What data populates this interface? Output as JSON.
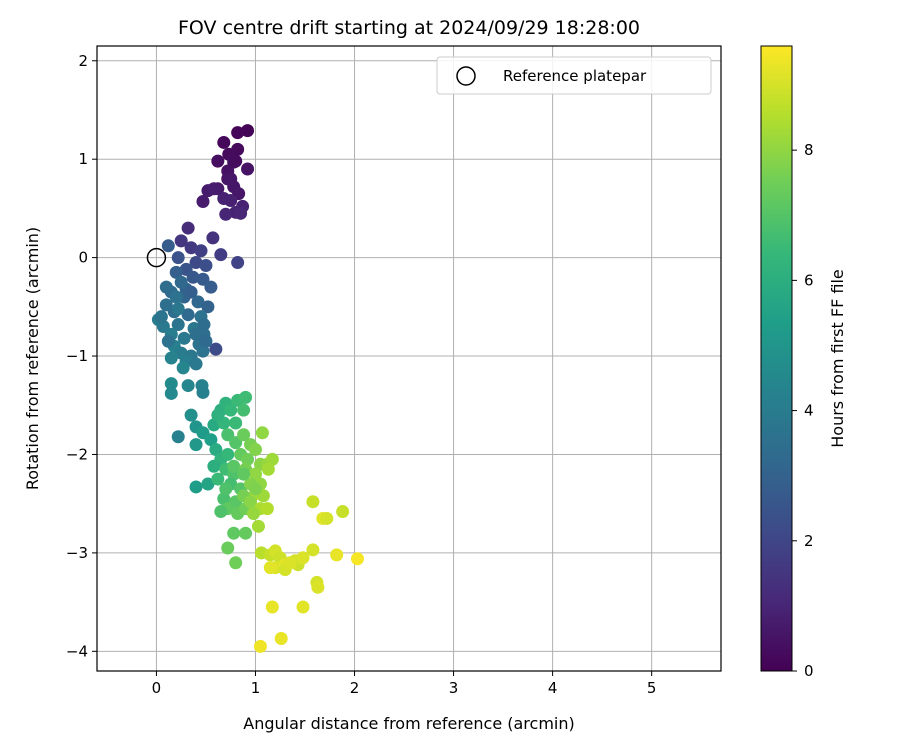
{
  "chart_data": {
    "type": "scatter",
    "title": "FOV centre drift starting at 2024/09/29 18:28:00",
    "xlabel": "Angular distance from reference (arcmin)",
    "ylabel": "Rotation from reference (arcmin)",
    "xlim": [
      -0.6,
      5.7
    ],
    "ylim": [
      -4.2,
      2.15
    ],
    "xticks": [
      0,
      1,
      2,
      3,
      4,
      5
    ],
    "xtick_labels": [
      "0",
      "1",
      "2",
      "3",
      "4",
      "5"
    ],
    "yticks": [
      -4,
      -3,
      -2,
      -1,
      0,
      1,
      2
    ],
    "ytick_labels": [
      "−4",
      "−3",
      "−2",
      "−1",
      "0",
      "1",
      "2"
    ],
    "grid": true,
    "colormap": "viridis",
    "colorbar": {
      "label": "Hours from first FF file",
      "range": [
        0,
        9.6
      ],
      "ticks": [
        0,
        2,
        4,
        6,
        8
      ],
      "tick_labels": [
        "0",
        "2",
        "4",
        "6",
        "8"
      ]
    },
    "legend": {
      "placement": "top-right",
      "entries": [
        {
          "label": "Reference platepar",
          "marker": "open-circle"
        }
      ]
    },
    "reference_point": {
      "x": 0,
      "y": 0
    },
    "points": [
      [
        0.92,
        1.29,
        0.1
      ],
      [
        0.82,
        1.27,
        0.15
      ],
      [
        0.68,
        1.17,
        0.2
      ],
      [
        0.82,
        1.1,
        0.25
      ],
      [
        0.73,
        1.05,
        0.3
      ],
      [
        0.62,
        0.98,
        0.35
      ],
      [
        0.78,
        0.97,
        0.4
      ],
      [
        0.72,
        0.88,
        0.45
      ],
      [
        0.72,
        0.8,
        0.5
      ],
      [
        0.78,
        0.72,
        0.55
      ],
      [
        0.83,
        0.65,
        0.6
      ],
      [
        0.62,
        0.7,
        0.65
      ],
      [
        0.52,
        0.68,
        0.7
      ],
      [
        0.47,
        0.57,
        0.75
      ],
      [
        0.58,
        0.7,
        0.8
      ],
      [
        0.75,
        0.58,
        0.85
      ],
      [
        0.87,
        0.52,
        0.9
      ],
      [
        0.8,
        0.46,
        0.95
      ],
      [
        0.7,
        0.44,
        1.0
      ],
      [
        0.85,
        0.45,
        1.05
      ],
      [
        0.75,
        0.8,
        0.6
      ],
      [
        0.68,
        0.6,
        0.9
      ],
      [
        0.8,
        0.98,
        0.3
      ],
      [
        0.92,
        0.9,
        0.5
      ],
      [
        0.32,
        0.3,
        1.2
      ],
      [
        0.57,
        0.2,
        1.4
      ],
      [
        0.25,
        0.17,
        1.5
      ],
      [
        0.12,
        0.12,
        2.8
      ],
      [
        0.35,
        0.1,
        1.6
      ],
      [
        0.45,
        0.07,
        1.8
      ],
      [
        0.65,
        0.03,
        1.7
      ],
      [
        0.82,
        -0.05,
        1.9
      ],
      [
        0.22,
        0.0,
        2.4
      ],
      [
        0.4,
        -0.05,
        2.1
      ],
      [
        0.5,
        -0.08,
        2.3
      ],
      [
        0.3,
        -0.12,
        2.5
      ],
      [
        0.2,
        -0.15,
        2.9
      ],
      [
        0.37,
        -0.2,
        2.6
      ],
      [
        0.47,
        -0.22,
        2.7
      ],
      [
        0.55,
        -0.3,
        2.8
      ],
      [
        0.3,
        -0.32,
        3.0
      ],
      [
        0.15,
        -0.35,
        3.3
      ],
      [
        0.28,
        -0.4,
        3.1
      ],
      [
        0.42,
        -0.45,
        3.2
      ],
      [
        0.52,
        -0.5,
        3.0
      ],
      [
        0.1,
        -0.48,
        3.5
      ],
      [
        0.18,
        -0.55,
        3.4
      ],
      [
        0.32,
        -0.58,
        3.3
      ],
      [
        0.45,
        -0.6,
        3.6
      ],
      [
        0.02,
        -0.63,
        4.0
      ],
      [
        0.07,
        -0.7,
        3.9
      ],
      [
        0.22,
        -0.68,
        3.7
      ],
      [
        0.38,
        -0.72,
        3.8
      ],
      [
        0.48,
        -0.78,
        3.5
      ],
      [
        0.15,
        -0.78,
        4.1
      ],
      [
        0.28,
        -0.82,
        3.9
      ],
      [
        0.43,
        -0.88,
        3.7
      ],
      [
        0.6,
        -0.93,
        2.2
      ],
      [
        0.18,
        -0.9,
        4.2
      ],
      [
        0.25,
        -0.97,
        4.0
      ],
      [
        0.35,
        -1.0,
        3.8
      ],
      [
        0.47,
        -0.95,
        3.6
      ],
      [
        0.15,
        -1.02,
        4.3
      ],
      [
        0.3,
        -1.05,
        4.1
      ],
      [
        0.27,
        -1.12,
        4.4
      ],
      [
        0.4,
        -1.08,
        3.9
      ],
      [
        0.2,
        -0.4,
        3.6
      ],
      [
        0.1,
        -0.3,
        3.4
      ],
      [
        0.25,
        -0.25,
        3.2
      ],
      [
        0.35,
        -0.35,
        2.9
      ],
      [
        0.05,
        -0.6,
        3.7
      ],
      [
        0.4,
        -0.78,
        3.5
      ],
      [
        0.22,
        -0.52,
        3.8
      ],
      [
        0.48,
        -0.68,
        3.4
      ],
      [
        0.12,
        -0.85,
        3.6
      ],
      [
        0.5,
        -0.85,
        3.3
      ],
      [
        0.15,
        -1.28,
        4.6
      ],
      [
        0.15,
        -1.38,
        4.5
      ],
      [
        0.32,
        -1.3,
        4.4
      ],
      [
        0.46,
        -1.3,
        4.3
      ],
      [
        0.47,
        -1.37,
        4.2
      ],
      [
        0.35,
        -1.6,
        4.8
      ],
      [
        0.22,
        -1.82,
        4.2
      ],
      [
        0.4,
        -1.72,
        5.0
      ],
      [
        0.47,
        -1.78,
        5.2
      ],
      [
        0.4,
        -1.9,
        5.1
      ],
      [
        0.55,
        -1.85,
        5.4
      ],
      [
        0.4,
        -2.33,
        5.3
      ],
      [
        0.52,
        -2.3,
        5.6
      ],
      [
        0.58,
        -1.7,
        5.8
      ],
      [
        0.65,
        -1.55,
        6.0
      ],
      [
        0.7,
        -1.48,
        6.2
      ],
      [
        0.75,
        -1.55,
        6.4
      ],
      [
        0.68,
        -1.68,
        6.3
      ],
      [
        0.62,
        -1.6,
        6.1
      ],
      [
        0.82,
        -1.45,
        6.5
      ],
      [
        0.9,
        -1.42,
        6.6
      ],
      [
        0.88,
        -1.55,
        6.7
      ],
      [
        0.8,
        -1.68,
        6.5
      ],
      [
        0.72,
        -1.8,
        6.8
      ],
      [
        0.6,
        -1.95,
        5.9
      ],
      [
        0.65,
        -2.05,
        6.2
      ],
      [
        0.72,
        -2.0,
        6.4
      ],
      [
        0.58,
        -2.12,
        6.0
      ],
      [
        0.7,
        -2.15,
        6.6
      ],
      [
        0.78,
        -2.2,
        6.9
      ],
      [
        0.62,
        -2.25,
        6.5
      ],
      [
        0.75,
        -2.3,
        6.7
      ],
      [
        0.85,
        -2.35,
        7.0
      ],
      [
        0.68,
        -2.45,
        6.8
      ],
      [
        0.8,
        -2.48,
        7.1
      ],
      [
        0.72,
        -2.55,
        7.2
      ],
      [
        0.82,
        -2.6,
        7.3
      ],
      [
        0.9,
        -2.55,
        7.5
      ],
      [
        0.65,
        -2.58,
        6.9
      ],
      [
        0.78,
        -2.8,
        7.2
      ],
      [
        0.72,
        -2.95,
        7.4
      ],
      [
        0.9,
        -2.8,
        7.3
      ],
      [
        0.8,
        -3.1,
        7.5
      ],
      [
        0.8,
        -1.88,
        7.0
      ],
      [
        0.88,
        -1.8,
        7.4
      ],
      [
        0.95,
        -1.9,
        7.6
      ],
      [
        1.0,
        -1.95,
        7.8
      ],
      [
        0.85,
        -2.0,
        7.3
      ],
      [
        0.92,
        -2.05,
        7.5
      ],
      [
        1.05,
        -2.1,
        7.9
      ],
      [
        0.78,
        -2.12,
        7.1
      ],
      [
        0.9,
        -2.15,
        7.6
      ],
      [
        1.0,
        -2.2,
        8.0
      ],
      [
        1.12,
        -2.1,
        8.1
      ],
      [
        1.17,
        -2.05,
        8.2
      ],
      [
        1.05,
        -2.3,
        8.0
      ],
      [
        0.95,
        -2.3,
        7.8
      ],
      [
        1.0,
        -2.4,
        8.3
      ],
      [
        1.08,
        -2.42,
        8.2
      ],
      [
        0.88,
        -2.42,
        7.6
      ],
      [
        0.95,
        -2.48,
        7.9
      ],
      [
        1.05,
        -2.55,
        8.4
      ],
      [
        1.12,
        -2.55,
        8.5
      ],
      [
        0.98,
        -2.6,
        8.1
      ],
      [
        1.03,
        -2.73,
        8.3
      ],
      [
        1.07,
        -1.78,
        8.0
      ],
      [
        1.13,
        -2.15,
        8.3
      ],
      [
        1.0,
        -2.35,
        7.7
      ],
      [
        0.7,
        -2.35,
        6.9
      ],
      [
        0.88,
        -2.2,
        7.2
      ],
      [
        1.06,
        -3.0,
        8.6
      ],
      [
        1.15,
        -3.02,
        8.8
      ],
      [
        1.2,
        -2.98,
        9.0
      ],
      [
        1.25,
        -3.05,
        8.9
      ],
      [
        1.2,
        -3.15,
        9.1
      ],
      [
        1.3,
        -3.12,
        9.2
      ],
      [
        1.3,
        -3.17,
        9.0
      ],
      [
        1.4,
        -3.08,
        9.0
      ],
      [
        1.43,
        -3.12,
        8.9
      ],
      [
        1.48,
        -3.05,
        9.1
      ],
      [
        1.58,
        -2.48,
        8.8
      ],
      [
        1.58,
        -2.97,
        9.0
      ],
      [
        1.68,
        -2.65,
        9.2
      ],
      [
        1.72,
        -2.65,
        9.0
      ],
      [
        1.88,
        -2.58,
        8.8
      ],
      [
        1.62,
        -3.3,
        9.0
      ],
      [
        1.63,
        -3.35,
        9.1
      ],
      [
        1.82,
        -3.02,
        9.3
      ],
      [
        2.03,
        -3.06,
        9.5
      ],
      [
        1.17,
        -3.55,
        9.3
      ],
      [
        1.48,
        -3.55,
        9.2
      ],
      [
        1.05,
        -3.95,
        9.4
      ],
      [
        1.26,
        -3.87,
        9.3
      ],
      [
        1.15,
        -3.15,
        9.2
      ],
      [
        1.35,
        -3.1,
        9.1
      ]
    ]
  }
}
